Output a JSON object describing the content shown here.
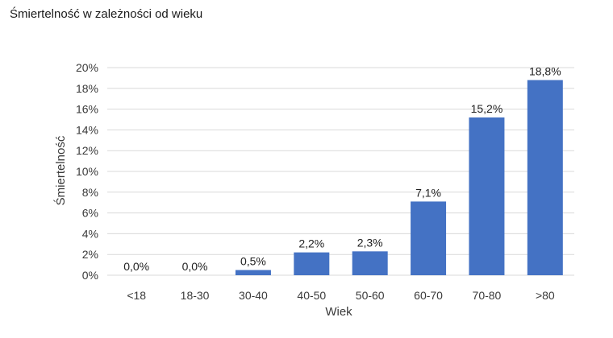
{
  "chart_data": {
    "type": "bar",
    "title": "Śmiertelność w zależności od wieku",
    "xlabel": "Wiek",
    "ylabel": "Śmiertelność",
    "categories": [
      "<18",
      "18-30",
      "30-40",
      "40-50",
      "50-60",
      "60-70",
      "70-80",
      ">80"
    ],
    "values": [
      0.0,
      0.0,
      0.5,
      2.2,
      2.3,
      7.1,
      15.2,
      18.8
    ],
    "data_labels": [
      "0,0%",
      "0,0%",
      "0,5%",
      "2,2%",
      "2,3%",
      "7,1%",
      "15,2%",
      "18,8%"
    ],
    "yticks": [
      0,
      2,
      4,
      6,
      8,
      10,
      12,
      14,
      16,
      18,
      20
    ],
    "ytick_labels": [
      "0%",
      "2%",
      "4%",
      "6%",
      "8%",
      "10%",
      "12%",
      "14%",
      "16%",
      "18%",
      "20%"
    ],
    "ylim": [
      0,
      20
    ],
    "grid": true,
    "legend": false,
    "colors": {
      "bar": "#4472c4",
      "grid": "#d9d9d9"
    }
  }
}
